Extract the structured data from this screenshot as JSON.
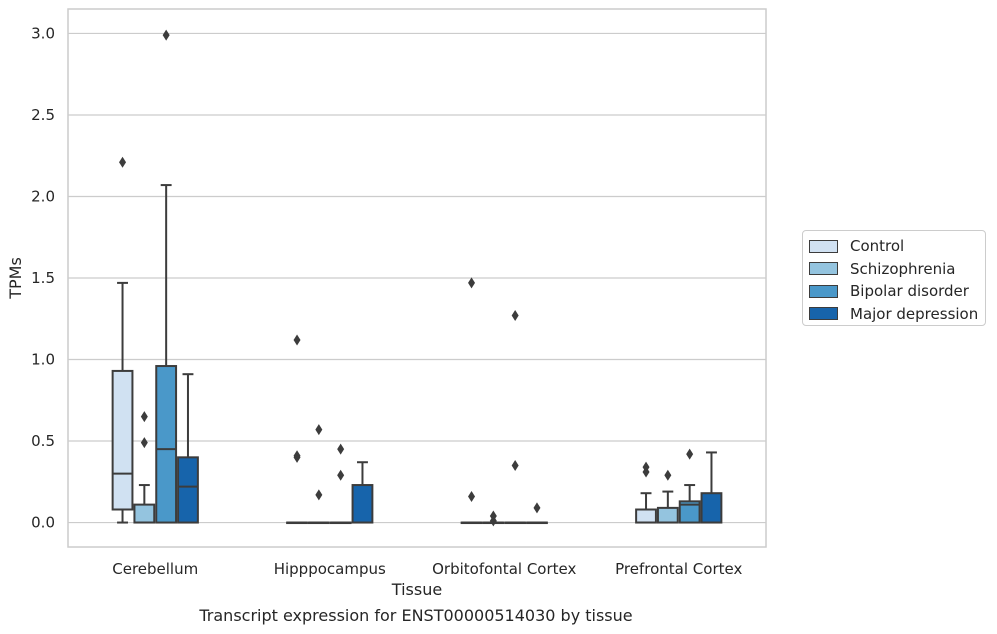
{
  "caption": "Transcript expression for ENST00000514030 by tissue",
  "chart_data": {
    "type": "box",
    "xlabel": "Tissue",
    "ylabel": "TPMs",
    "ylim": [
      -0.15,
      3.15
    ],
    "yticks": [
      0.0,
      0.5,
      1.0,
      1.5,
      2.0,
      2.5,
      3.0
    ],
    "ytick_labels": [
      "0.0",
      "0.5",
      "1.0",
      "1.5",
      "2.0",
      "2.5",
      "3.0"
    ],
    "grid": "horizontal",
    "legend_position": "right",
    "categories": [
      "Cerebellum",
      "Hipppocampus",
      "Orbitofontal Cortex",
      "Prefrontal Cortex"
    ],
    "series": [
      {
        "name": "Control",
        "color": "#d0e1f2",
        "boxes": [
          {
            "whislo": 0.0,
            "q1": 0.08,
            "med": 0.3,
            "q3": 0.93,
            "whishi": 1.47,
            "fliers": [
              2.21
            ]
          },
          {
            "whislo": 0.0,
            "q1": 0.0,
            "med": 0.0,
            "q3": 0.0,
            "whishi": 0.0,
            "fliers": [
              0.4,
              0.41,
              1.12
            ]
          },
          {
            "whislo": 0.0,
            "q1": 0.0,
            "med": 0.0,
            "q3": 0.0,
            "whishi": 0.0,
            "fliers": [
              0.16,
              1.47
            ]
          },
          {
            "whislo": 0.0,
            "q1": 0.0,
            "med": 0.0,
            "q3": 0.08,
            "whishi": 0.18,
            "fliers": [
              0.31,
              0.34
            ]
          }
        ]
      },
      {
        "name": "Schizophrenia",
        "color": "#94c4df",
        "boxes": [
          {
            "whislo": 0.0,
            "q1": 0.0,
            "med": 0.0,
            "q3": 0.11,
            "whishi": 0.23,
            "fliers": [
              0.49,
              0.65
            ]
          },
          {
            "whislo": 0.0,
            "q1": 0.0,
            "med": 0.0,
            "q3": 0.0,
            "whishi": 0.0,
            "fliers": [
              0.17,
              0.57
            ]
          },
          {
            "whislo": 0.0,
            "q1": 0.0,
            "med": 0.0,
            "q3": 0.0,
            "whishi": 0.0,
            "fliers": [
              0.01,
              0.04
            ]
          },
          {
            "whislo": 0.0,
            "q1": 0.0,
            "med": 0.0,
            "q3": 0.09,
            "whishi": 0.19,
            "fliers": [
              0.29
            ]
          }
        ]
      },
      {
        "name": "Bipolar disorder",
        "color": "#4a98c9",
        "boxes": [
          {
            "whislo": 0.0,
            "q1": 0.0,
            "med": 0.45,
            "q3": 0.96,
            "whishi": 2.07,
            "fliers": [
              2.99
            ]
          },
          {
            "whislo": 0.0,
            "q1": 0.0,
            "med": 0.0,
            "q3": 0.0,
            "whishi": 0.0,
            "fliers": [
              0.29,
              0.45
            ]
          },
          {
            "whislo": 0.0,
            "q1": 0.0,
            "med": 0.0,
            "q3": 0.0,
            "whishi": 0.0,
            "fliers": [
              0.35,
              1.27
            ]
          },
          {
            "whislo": 0.0,
            "q1": 0.0,
            "med": 0.11,
            "q3": 0.13,
            "whishi": 0.23,
            "fliers": [
              0.42
            ]
          }
        ]
      },
      {
        "name": "Major depression",
        "color": "#1764ab",
        "boxes": [
          {
            "whislo": 0.0,
            "q1": 0.0,
            "med": 0.22,
            "q3": 0.4,
            "whishi": 0.91,
            "fliers": []
          },
          {
            "whislo": 0.0,
            "q1": 0.0,
            "med": 0.0,
            "q3": 0.23,
            "whishi": 0.37,
            "fliers": []
          },
          {
            "whislo": 0.0,
            "q1": 0.0,
            "med": 0.0,
            "q3": 0.0,
            "whishi": 0.0,
            "fliers": [
              0.09
            ]
          },
          {
            "whislo": 0.0,
            "q1": 0.0,
            "med": 0.0,
            "q3": 0.18,
            "whishi": 0.43,
            "fliers": []
          }
        ]
      }
    ]
  }
}
